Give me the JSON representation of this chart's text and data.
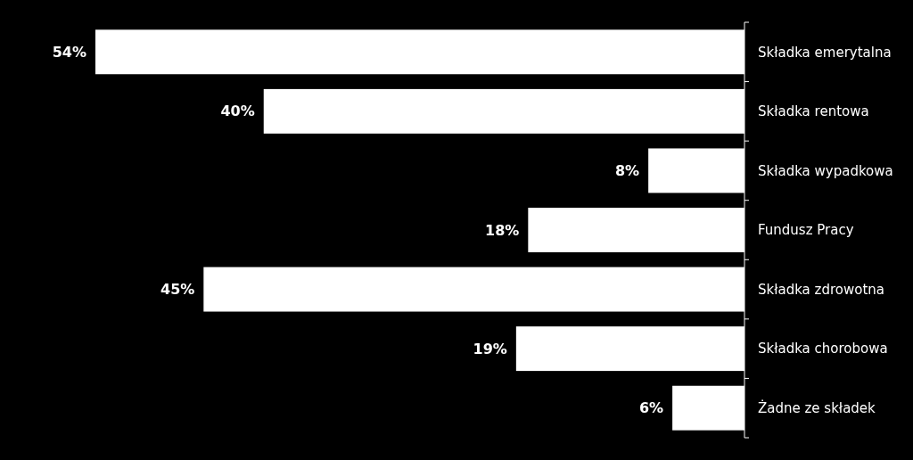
{
  "chart_data": {
    "type": "bar",
    "orientation": "horizontal",
    "categories": [
      "Składka emerytalna",
      "Składka rentowa",
      "Składka wypadkowa",
      "Fundusz Pracy",
      "Składka zdrowotna",
      "Składka chorobowa",
      "Żadne ze składek"
    ],
    "values": [
      54,
      40,
      8,
      18,
      45,
      19,
      6
    ],
    "value_labels": [
      "54%",
      "40%",
      "8%",
      "18%",
      "45%",
      "19%",
      "6%"
    ],
    "color": "#ffffff"
  }
}
